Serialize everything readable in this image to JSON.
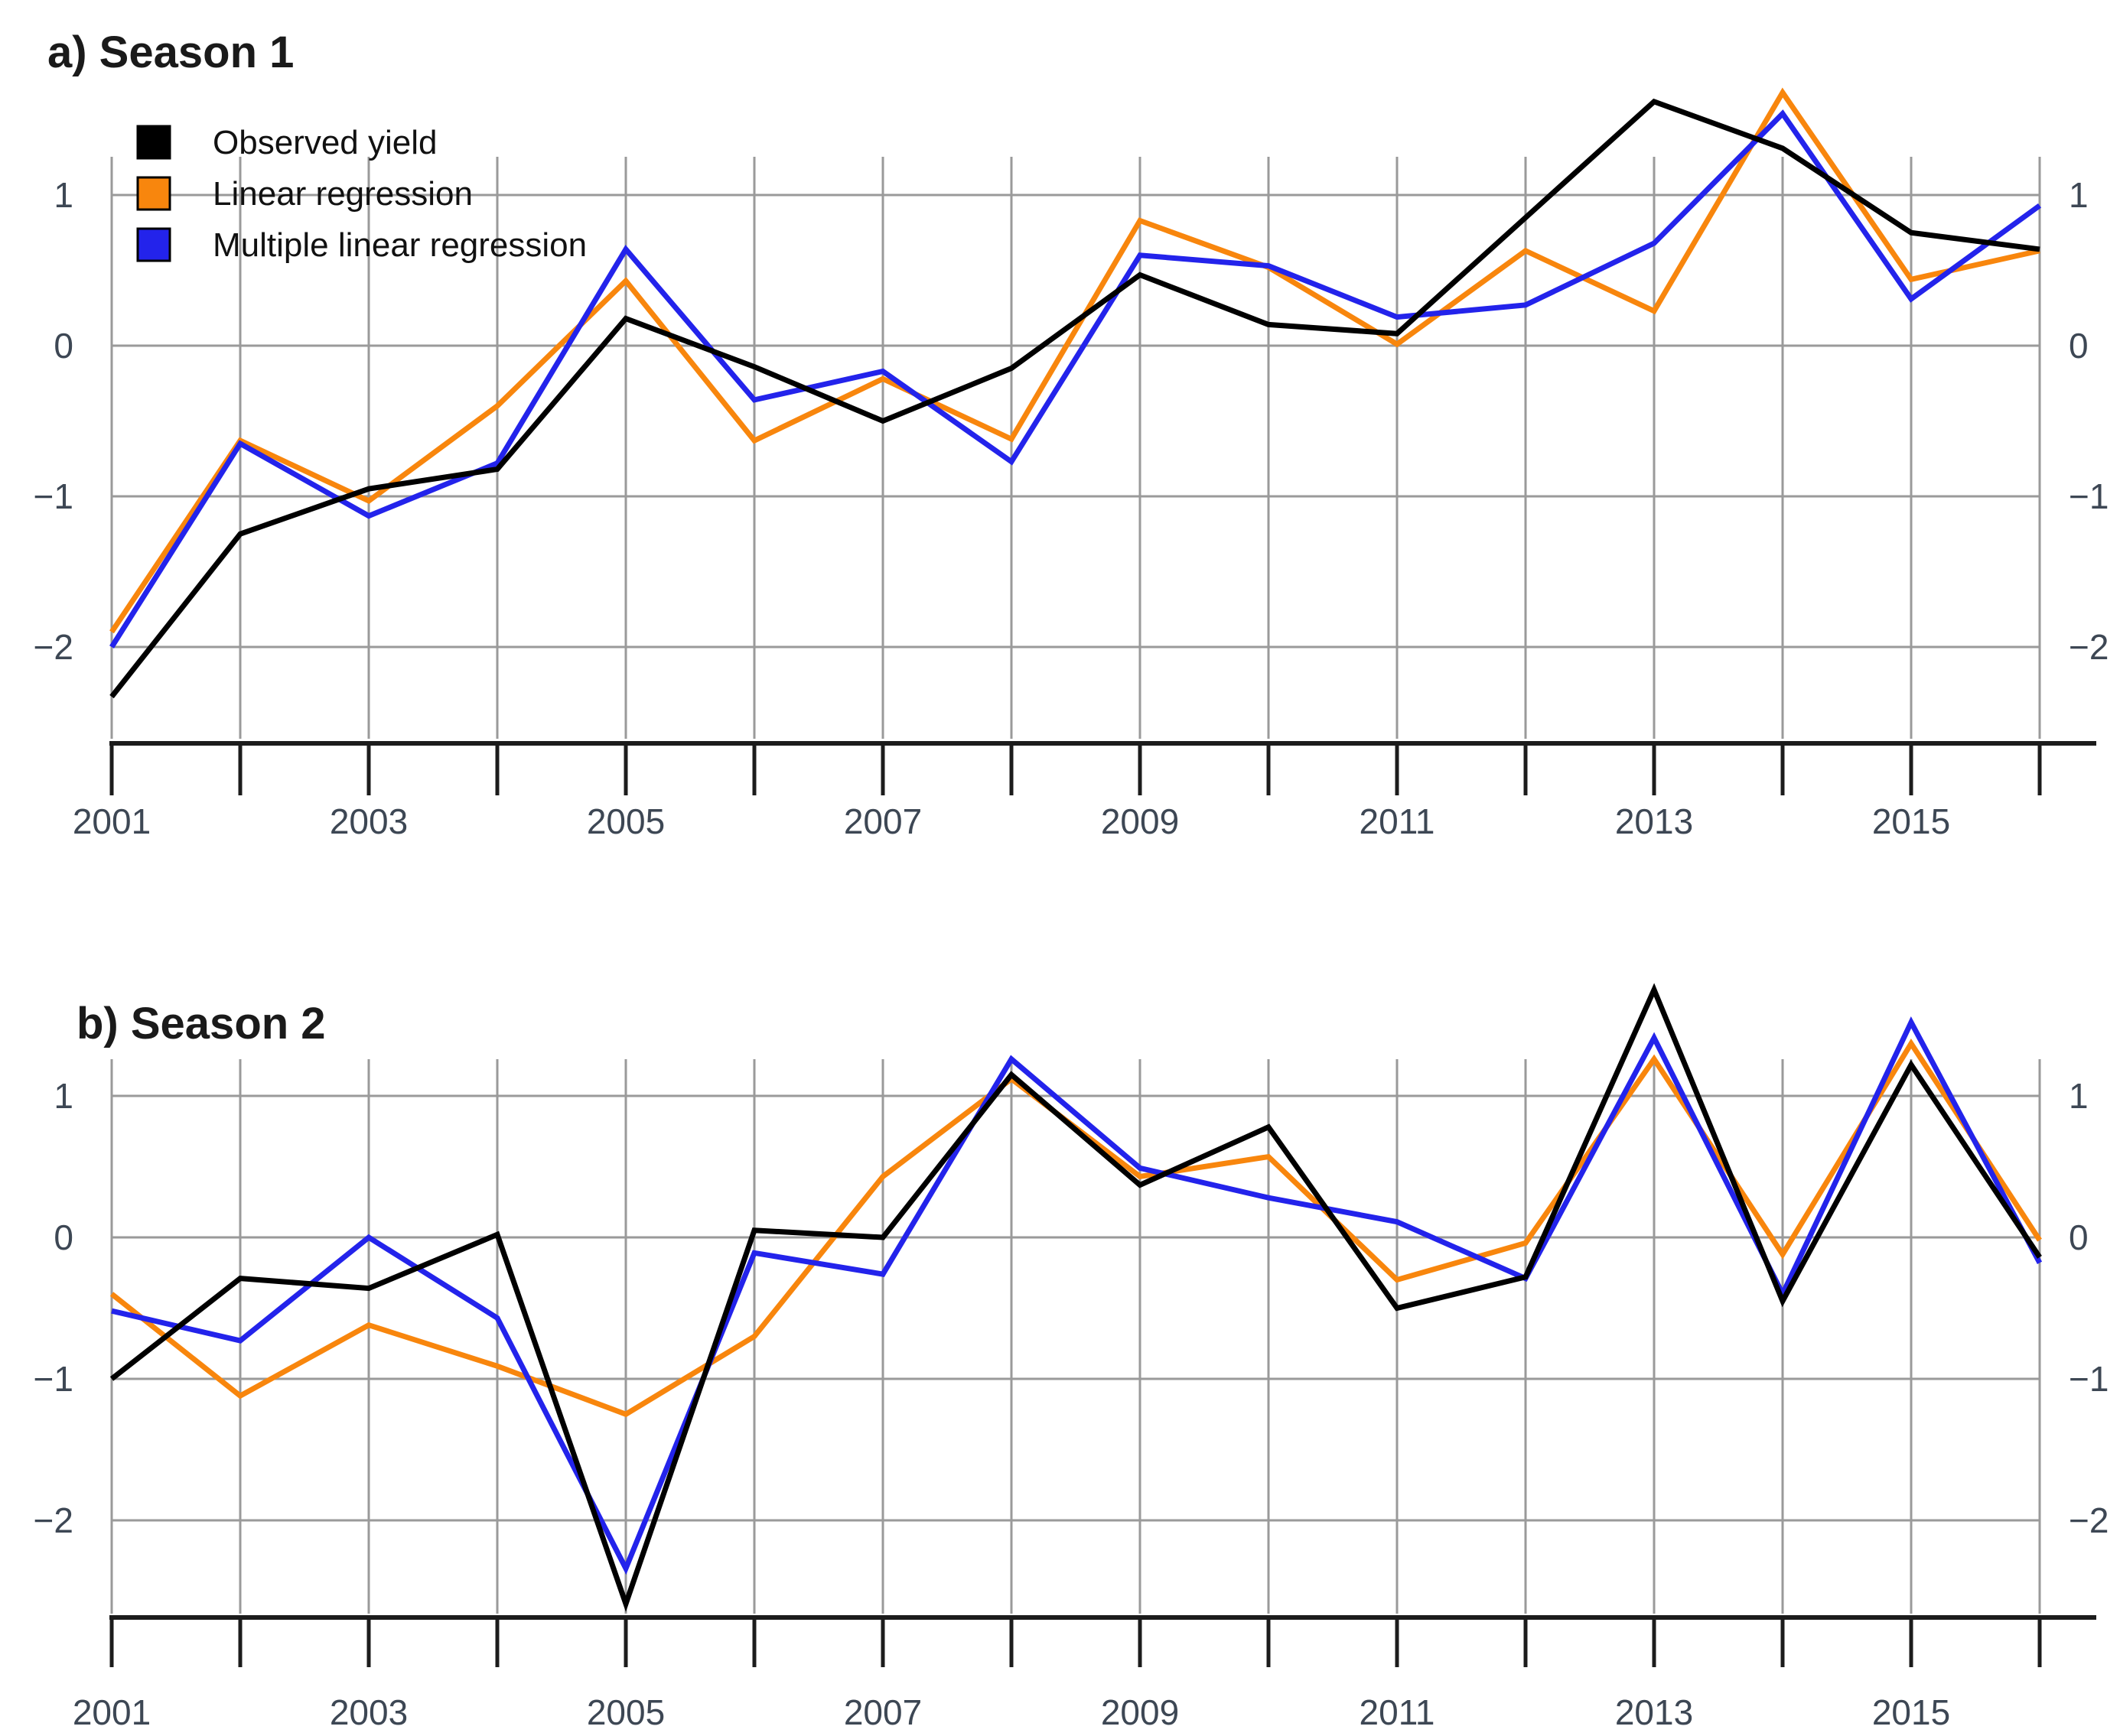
{
  "panels": [
    {
      "title": "a) Season 1"
    },
    {
      "title": "b) Season 2"
    }
  ],
  "legend": {
    "position": "top-left",
    "items": [
      {
        "label": "Observed yield",
        "color": "#000000"
      },
      {
        "label": "Linear regression",
        "color": "#F8860D"
      },
      {
        "label": "Multiple linear regression",
        "color": "#2323EB"
      }
    ]
  },
  "axes": {
    "y_tick_labels": [
      "1",
      "0",
      "−1",
      "−2"
    ],
    "x_tick_labels": [
      "2001",
      "2003",
      "2005",
      "2007",
      "2009",
      "2011",
      "2013",
      "2015"
    ]
  },
  "colors": {
    "grid": "#9a9a9a",
    "axis": "#1c1c1c",
    "tick_text": "#3d4754",
    "observed": "#000000",
    "linear": "#F8860D",
    "multiple": "#2323EB"
  },
  "chart_data": [
    {
      "type": "line",
      "title": "a) Season 1",
      "x": [
        2001,
        2002,
        2003,
        2004,
        2005,
        2006,
        2007,
        2008,
        2009,
        2010,
        2011,
        2012,
        2013,
        2014,
        2015,
        2016
      ],
      "xlabel": "",
      "ylabel": "",
      "ylim": [
        -2.7,
        1.8
      ],
      "y_ticks": [
        1,
        0,
        -1,
        -2
      ],
      "x_tick_labels": [
        2001,
        2003,
        2005,
        2007,
        2009,
        2011,
        2013,
        2015
      ],
      "grid": true,
      "legend_position": "top-left",
      "series": [
        {
          "name": "Observed yield",
          "color": "#000000",
          "values": [
            -2.33,
            -1.25,
            -0.95,
            -0.82,
            0.18,
            -0.14,
            -0.5,
            -0.15,
            0.47,
            0.14,
            0.08,
            0.85,
            1.62,
            1.31,
            0.75,
            0.64
          ]
        },
        {
          "name": "Linear regression",
          "color": "#F8860D",
          "values": [
            -1.9,
            -0.63,
            -1.03,
            -0.4,
            0.43,
            -0.63,
            -0.22,
            -0.62,
            0.83,
            0.52,
            0.01,
            0.63,
            0.23,
            1.68,
            0.44,
            0.63
          ]
        },
        {
          "name": "Multiple linear regression",
          "color": "#2323EB",
          "values": [
            -2.0,
            -0.65,
            -1.13,
            -0.78,
            0.64,
            -0.36,
            -0.17,
            -0.77,
            0.6,
            0.53,
            0.19,
            0.27,
            0.68,
            1.54,
            0.31,
            0.93
          ]
        }
      ]
    },
    {
      "type": "line",
      "title": "b) Season 2",
      "x": [
        2001,
        2002,
        2003,
        2004,
        2005,
        2006,
        2007,
        2008,
        2009,
        2010,
        2011,
        2012,
        2013,
        2014,
        2015,
        2016
      ],
      "xlabel": "",
      "ylabel": "",
      "ylim": [
        -2.8,
        1.9
      ],
      "y_ticks": [
        1,
        0,
        -1,
        -2
      ],
      "x_tick_labels": [
        2001,
        2003,
        2005,
        2007,
        2009,
        2011,
        2013,
        2015
      ],
      "grid": true,
      "legend_position": "none",
      "series": [
        {
          "name": "Observed yield",
          "color": "#000000",
          "values": [
            -1.0,
            -0.29,
            -0.36,
            0.02,
            -2.59,
            0.05,
            0.0,
            1.15,
            0.37,
            0.78,
            -0.5,
            -0.28,
            1.75,
            -0.45,
            1.22,
            -0.14
          ]
        },
        {
          "name": "Linear regression",
          "color": "#F8860D",
          "values": [
            -0.4,
            -1.12,
            -0.62,
            -0.91,
            -1.25,
            -0.7,
            0.43,
            1.12,
            0.43,
            0.57,
            -0.3,
            -0.04,
            1.26,
            -0.12,
            1.37,
            -0.02
          ]
        },
        {
          "name": "Multiple linear regression",
          "color": "#2323EB",
          "values": [
            -0.52,
            -0.73,
            0.0,
            -0.57,
            -2.34,
            -0.11,
            -0.26,
            1.26,
            0.49,
            0.28,
            0.11,
            -0.29,
            1.41,
            -0.4,
            1.52,
            -0.18
          ]
        }
      ]
    }
  ]
}
